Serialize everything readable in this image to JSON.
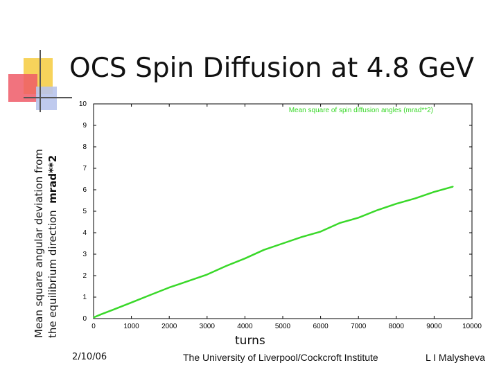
{
  "slide": {
    "title": "OCS Spin Diffusion at 4.8 GeV",
    "ylabel_line1": "Mean square angular deviation from",
    "ylabel_line2_prefix": "the equilibrium direction",
    "ylabel_unit": "mrad**2",
    "xlabel": "turns",
    "footer_date": "2/10/06",
    "footer_institution": "The University of Liverpool/Cockcroft Institute",
    "footer_author": "L I Malysheva"
  },
  "chart_data": {
    "type": "line",
    "xlim": [
      0,
      10000
    ],
    "ylim": [
      0,
      10
    ],
    "xticks": [
      "0",
      "1000",
      "2000",
      "3000",
      "4000",
      "5000",
      "6000",
      "7000",
      "8000",
      "9000",
      "10000"
    ],
    "yticks": [
      "0",
      "1",
      "2",
      "3",
      "4",
      "5",
      "6",
      "7",
      "8",
      "9",
      "10"
    ],
    "grid": false,
    "legend_position": "top-right",
    "line_color": "#39d829",
    "series": [
      {
        "name": "Mean square of spin diffusion angles (mrad**2)",
        "x": [
          0,
          200,
          500,
          1000,
          1500,
          2000,
          2500,
          3000,
          3500,
          4000,
          4500,
          5000,
          5500,
          6000,
          6500,
          7000,
          7500,
          8000,
          8500,
          9000,
          9500
        ],
        "y": [
          0.05,
          0.2,
          0.4,
          0.75,
          1.1,
          1.45,
          1.75,
          2.05,
          2.45,
          2.8,
          3.2,
          3.5,
          3.8,
          4.05,
          4.45,
          4.7,
          5.05,
          5.35,
          5.6,
          5.9,
          6.15
        ]
      }
    ]
  }
}
